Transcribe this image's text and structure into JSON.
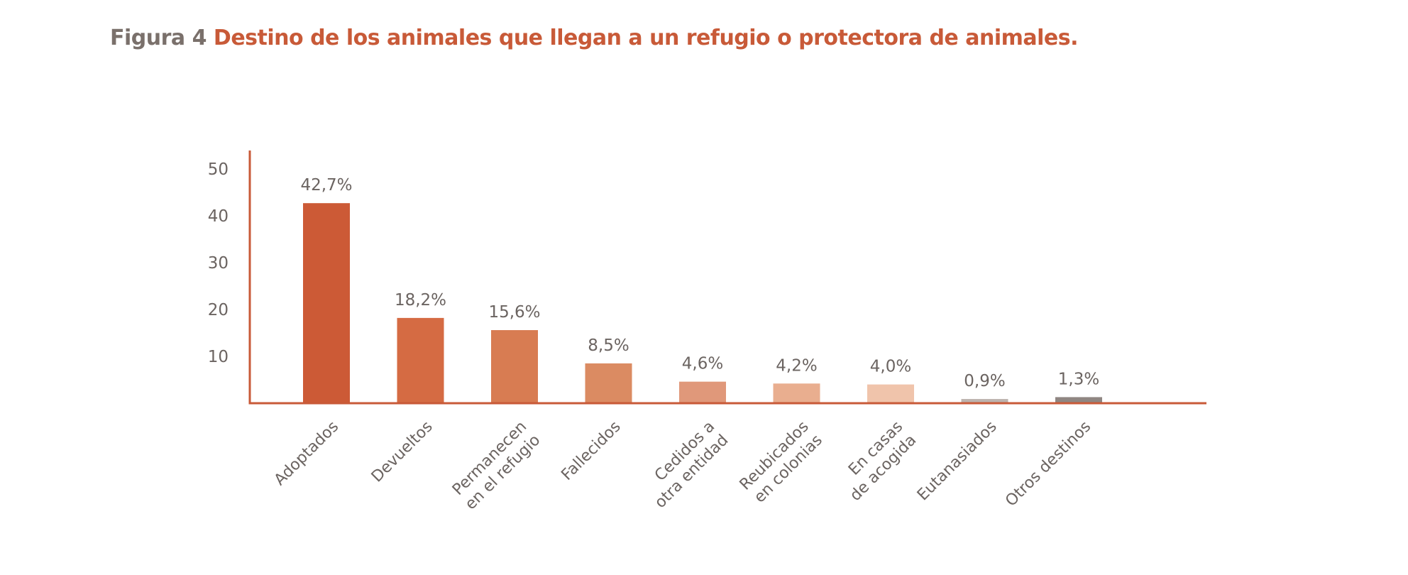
{
  "title": {
    "figure_label": "Figura 4",
    "text": "Destino de los animales que llegan a un refugio o protectora de animales."
  },
  "colors": {
    "title_label": "#7a706b",
    "title_text": "#c85a38",
    "axis": "#c85a38",
    "label_text": "#6b6461"
  },
  "chart_data": {
    "type": "bar",
    "title": "Destino de los animales que llegan a un refugio o protectora de animales.",
    "xlabel": "",
    "ylabel": "",
    "ylim": [
      0,
      52
    ],
    "yticks": [
      10,
      20,
      30,
      40,
      50
    ],
    "grid": false,
    "legend": "none",
    "categories": [
      [
        "Adoptados"
      ],
      [
        "Devueltos"
      ],
      [
        "Permanecen",
        "en el refugio"
      ],
      [
        "Fallecidos"
      ],
      [
        "Cedidos a",
        "otra entidad"
      ],
      [
        "Reubicados",
        "en colonias"
      ],
      [
        "En casas",
        "de acogida"
      ],
      [
        "Eutanasiados"
      ],
      [
        "Otros destinos"
      ]
    ],
    "values": [
      42.7,
      18.2,
      15.6,
      8.5,
      4.6,
      4.2,
      4.0,
      0.9,
      1.3
    ],
    "data_labels": [
      "42,7%",
      "18,2%",
      "15,6%",
      "8,5%",
      "4,6%",
      "4,2%",
      "4,0%",
      "0,9%",
      "1,3%"
    ],
    "bar_colors": [
      "#cc5a36",
      "#d56b43",
      "#d87c52",
      "#db8b62",
      "#e0987a",
      "#e9ae8f",
      "#f0c4ab",
      "#bdb3ae",
      "#8f8682"
    ]
  }
}
